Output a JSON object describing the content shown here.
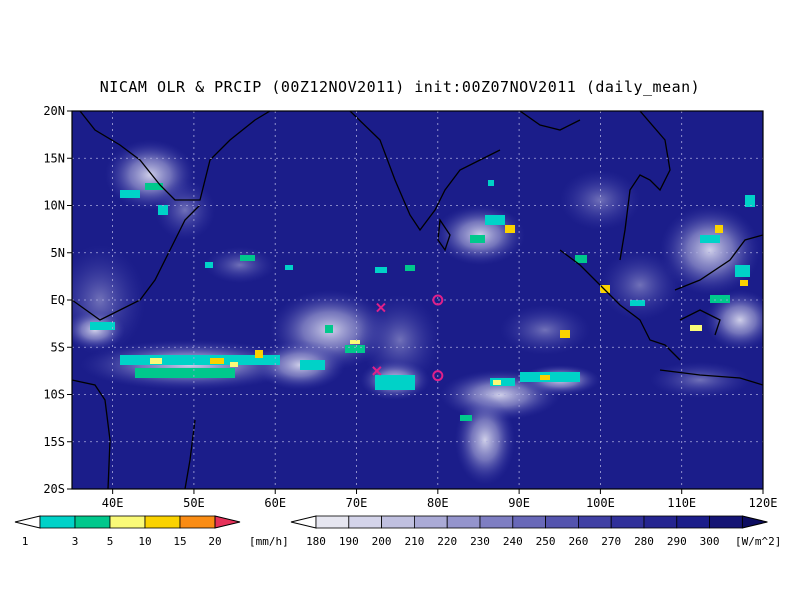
{
  "title": "NICAM OLR & PRCIP (00Z12NOV2011) init:00Z07NOV2011 (daily_mean)",
  "map": {
    "lon_range": [
      35,
      120
    ],
    "lat_range": [
      -20,
      20
    ],
    "background_color": "#1b1d8a",
    "grid": "dotted",
    "lat_ticks": [
      {
        "value": 20,
        "label": "20N"
      },
      {
        "value": 15,
        "label": "15N"
      },
      {
        "value": 10,
        "label": "10N"
      },
      {
        "value": 5,
        "label": "5N"
      },
      {
        "value": 0,
        "label": "EQ"
      },
      {
        "value": -5,
        "label": "5S"
      },
      {
        "value": -10,
        "label": "10S"
      },
      {
        "value": -15,
        "label": "15S"
      },
      {
        "value": -20,
        "label": "20S"
      }
    ],
    "lon_ticks": [
      {
        "value": 40,
        "label": "40E"
      },
      {
        "value": 50,
        "label": "50E"
      },
      {
        "value": 60,
        "label": "60E"
      },
      {
        "value": 70,
        "label": "70E"
      },
      {
        "value": 80,
        "label": "80E"
      },
      {
        "value": 90,
        "label": "90E"
      },
      {
        "value": 100,
        "label": "100E"
      },
      {
        "value": 110,
        "label": "110E"
      },
      {
        "value": 120,
        "label": "120E"
      }
    ],
    "markers": [
      {
        "type": "circle",
        "lon": 80,
        "lat": 0,
        "color": "#e0208a"
      },
      {
        "type": "circle",
        "lon": 80,
        "lat": -8,
        "color": "#e0208a"
      },
      {
        "type": "cross",
        "lon": 73,
        "lat": -0.8,
        "color": "#e0208a"
      },
      {
        "type": "cross",
        "lon": 72.5,
        "lat": -7.5,
        "color": "#e0208a"
      }
    ]
  },
  "precip_colorbar": {
    "unit": "[mm/h]",
    "labels": [
      "1",
      "3",
      "5",
      "10",
      "15",
      "20"
    ],
    "colors": [
      "#00d2c8",
      "#00c88c",
      "#fafa78",
      "#fad200",
      "#fa8c14",
      "#e6325a"
    ]
  },
  "olr_colorbar": {
    "unit": "[W/m^2]",
    "labels": [
      "180",
      "190",
      "200",
      "210",
      "220",
      "230",
      "240",
      "250",
      "260",
      "270",
      "280",
      "290",
      "300"
    ],
    "colors": [
      "#e6e6f0",
      "#d4d4ea",
      "#c0c0e0",
      "#aaaad6",
      "#9494cc",
      "#7e7ec2",
      "#6868b8",
      "#5454ae",
      "#4040a4",
      "#30309a",
      "#242490",
      "#1b1d8a",
      "#141474",
      "#0c0c60"
    ]
  }
}
